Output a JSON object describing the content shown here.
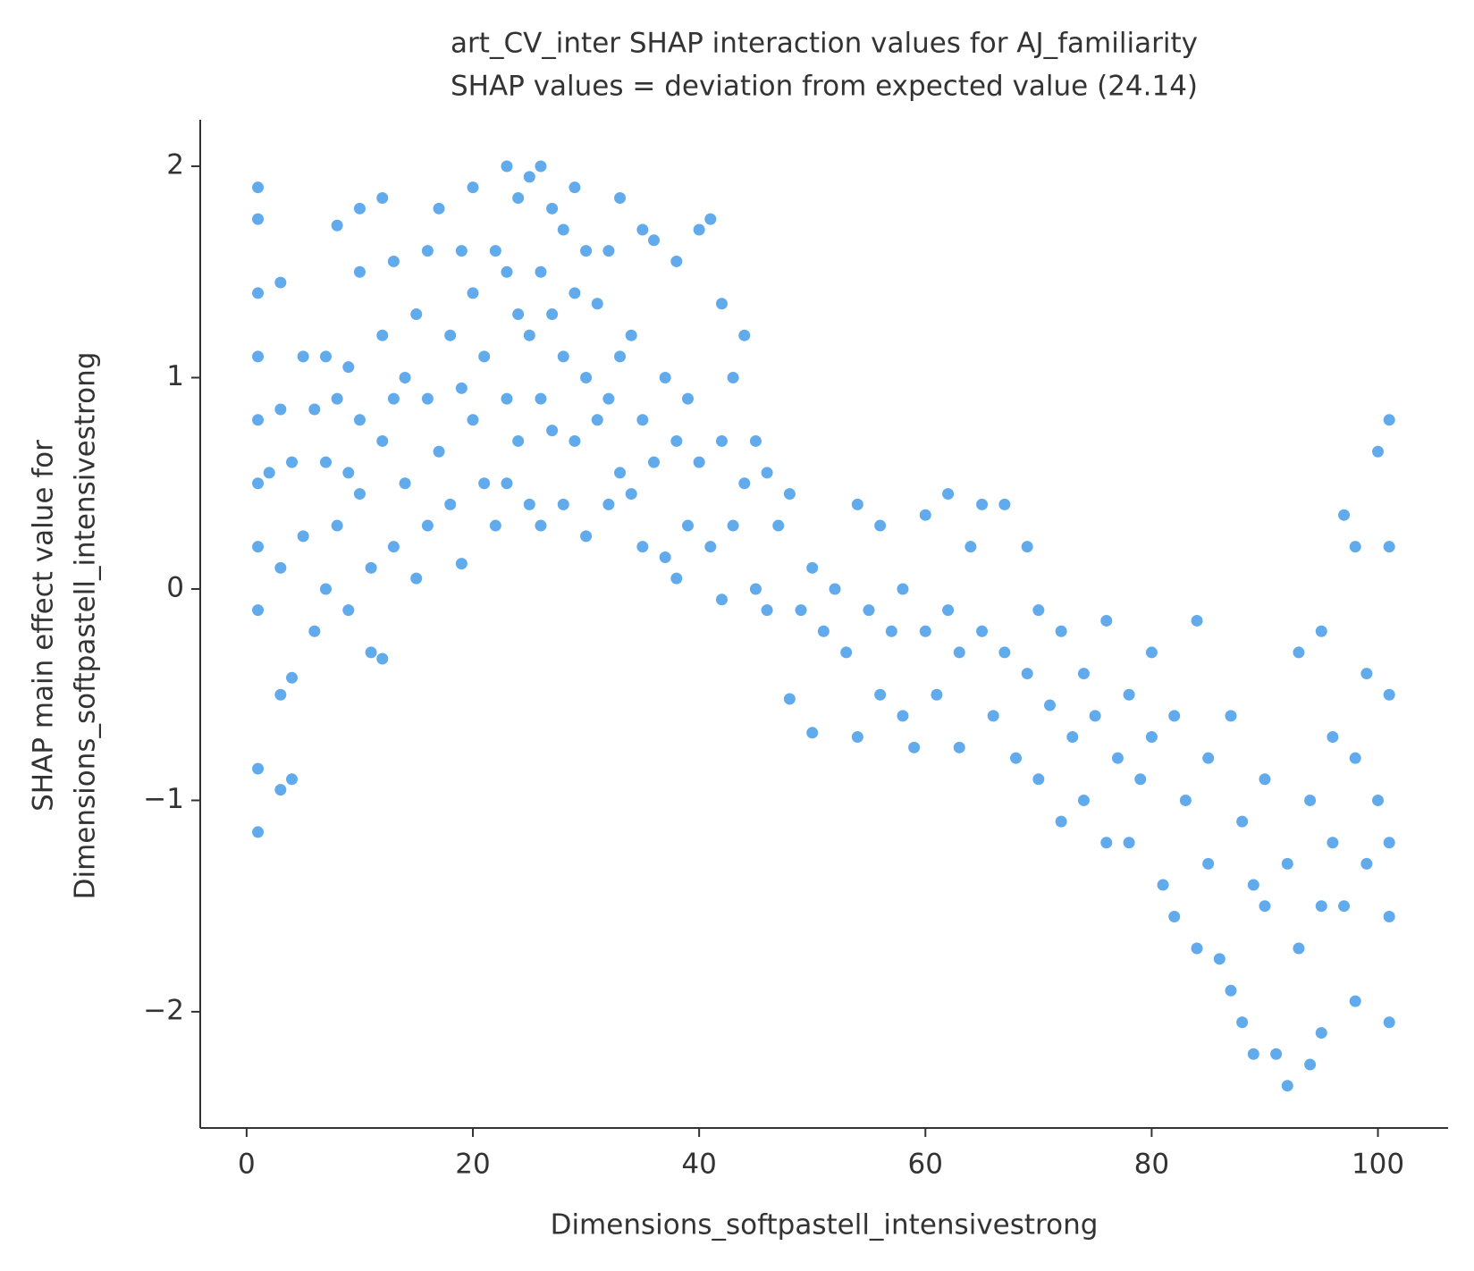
{
  "chart_data": {
    "type": "scatter",
    "title": "art_CV_inter SHAP interaction values for AJ_familiarity",
    "subtitle": "SHAP values = deviation from expected value (24.14)",
    "xlabel": "Dimensions_softpastell_intensivestrong",
    "ylabel": [
      "SHAP main effect value for",
      "Dimensions_softpastell_intensivestrong"
    ],
    "color": "#1e88e5",
    "xlim": [
      -4.1,
      106.2
    ],
    "ylim": [
      -2.55,
      2.22
    ],
    "xticks": [
      0,
      20,
      40,
      60,
      80,
      100
    ],
    "yticks": [
      {
        "value": -2,
        "label": "−2"
      },
      {
        "value": -1,
        "label": "−1"
      },
      0,
      1,
      2
    ],
    "x": [
      1,
      1,
      1,
      1,
      1,
      1,
      1,
      1,
      1,
      1,
      2,
      3,
      3,
      3,
      3,
      3,
      4,
      4,
      4,
      5,
      5,
      6,
      6,
      7,
      7,
      7,
      8,
      8,
      8,
      9,
      9,
      9,
      10,
      10,
      10,
      10,
      11,
      11,
      12,
      12,
      12,
      12,
      13,
      13,
      13,
      14,
      14,
      15,
      15,
      16,
      16,
      16,
      17,
      17,
      18,
      18,
      19,
      19,
      19,
      20,
      20,
      20,
      21,
      21,
      22,
      22,
      23,
      23,
      23,
      23,
      24,
      24,
      24,
      25,
      25,
      25,
      26,
      26,
      26,
      26,
      27,
      27,
      27,
      28,
      28,
      28,
      29,
      29,
      29,
      30,
      30,
      30,
      31,
      31,
      32,
      32,
      32,
      33,
      33,
      33,
      34,
      34,
      35,
      35,
      35,
      36,
      36,
      37,
      37,
      38,
      38,
      38,
      39,
      39,
      40,
      40,
      41,
      41,
      42,
      42,
      42,
      43,
      43,
      44,
      44,
      45,
      45,
      46,
      46,
      47,
      48,
      48,
      49,
      50,
      50,
      51,
      52,
      53,
      54,
      54,
      55,
      56,
      56,
      57,
      58,
      58,
      59,
      60,
      60,
      61,
      62,
      62,
      63,
      63,
      64,
      65,
      65,
      66,
      67,
      67,
      68,
      69,
      69,
      70,
      70,
      71,
      72,
      72,
      73,
      74,
      74,
      75,
      76,
      76,
      77,
      78,
      78,
      79,
      80,
      80,
      81,
      82,
      82,
      83,
      84,
      84,
      85,
      85,
      86,
      87,
      87,
      88,
      88,
      89,
      89,
      90,
      90,
      91,
      92,
      92,
      93,
      93,
      94,
      94,
      95,
      95,
      95,
      96,
      96,
      97,
      97,
      98,
      98,
      98,
      99,
      99,
      100,
      100,
      101,
      101,
      101,
      101,
      101,
      101
    ],
    "values": [
      1.9,
      1.75,
      1.4,
      1.1,
      0.8,
      0.5,
      0.2,
      -0.1,
      -0.85,
      -1.15,
      0.55,
      1.45,
      0.85,
      0.1,
      -0.5,
      -0.95,
      0.6,
      -0.42,
      -0.9,
      1.1,
      0.25,
      0.85,
      -0.2,
      1.1,
      0.6,
      0.0,
      1.72,
      0.9,
      0.3,
      1.05,
      0.55,
      -0.1,
      1.8,
      1.5,
      0.8,
      0.45,
      0.1,
      -0.3,
      1.85,
      1.2,
      0.7,
      -0.33,
      1.55,
      0.9,
      0.2,
      1.0,
      0.5,
      1.3,
      0.05,
      1.6,
      0.9,
      0.3,
      1.8,
      0.65,
      1.2,
      0.4,
      1.6,
      0.95,
      0.12,
      1.9,
      1.4,
      0.8,
      1.1,
      0.5,
      1.6,
      0.3,
      2.0,
      1.5,
      0.9,
      0.5,
      1.85,
      1.3,
      0.7,
      1.95,
      1.2,
      0.4,
      2.0,
      1.5,
      0.9,
      0.3,
      1.8,
      1.3,
      0.75,
      1.7,
      1.1,
      0.4,
      1.9,
      1.4,
      0.7,
      1.6,
      1.0,
      0.25,
      1.35,
      0.8,
      1.6,
      0.9,
      0.4,
      1.85,
      1.1,
      0.55,
      1.2,
      0.45,
      1.7,
      0.8,
      0.2,
      1.65,
      0.6,
      1.0,
      0.15,
      1.55,
      0.7,
      0.05,
      0.9,
      0.3,
      1.7,
      0.6,
      1.75,
      0.2,
      1.35,
      0.7,
      -0.05,
      1.0,
      0.3,
      1.2,
      0.5,
      0.7,
      0.0,
      0.55,
      -0.1,
      0.3,
      0.45,
      -0.52,
      -0.1,
      0.1,
      -0.68,
      -0.2,
      0.0,
      -0.3,
      0.4,
      -0.7,
      -0.1,
      0.3,
      -0.5,
      -0.2,
      0.0,
      -0.6,
      -0.75,
      0.35,
      -0.2,
      -0.5,
      0.45,
      -0.1,
      -0.3,
      -0.75,
      0.2,
      0.4,
      -0.2,
      -0.6,
      0.4,
      -0.3,
      -0.8,
      0.2,
      -0.4,
      -0.1,
      -0.9,
      -0.55,
      -0.2,
      -1.1,
      -0.7,
      -0.4,
      -1.0,
      -0.6,
      -0.15,
      -1.2,
      -0.8,
      -0.5,
      -1.2,
      -0.9,
      -0.3,
      -0.7,
      -1.4,
      -0.6,
      -1.55,
      -1.0,
      -0.15,
      -1.7,
      -0.8,
      -1.3,
      -1.75,
      -0.6,
      -1.9,
      -1.1,
      -2.05,
      -1.4,
      -2.2,
      -0.9,
      -1.5,
      -2.2,
      -1.3,
      -2.35,
      -0.3,
      -1.7,
      -1.0,
      -2.25,
      -0.2,
      -1.5,
      -2.1,
      -0.7,
      -1.2,
      0.35,
      -1.5,
      0.2,
      -0.8,
      -1.95,
      -0.4,
      -1.3,
      0.65,
      -1.0,
      0.8,
      0.2,
      -0.5,
      -1.2,
      -1.55,
      -2.05
    ]
  }
}
